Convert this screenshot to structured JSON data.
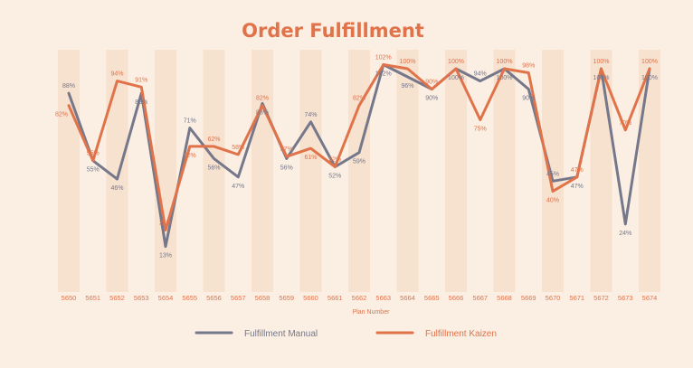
{
  "chart_data": {
    "type": "line",
    "title": "Order Fulfillment",
    "xlabel": "Plan Number",
    "ylabel": "",
    "ylim": [
      0,
      110
    ],
    "grid": false,
    "legend_position": "bottom",
    "categories": [
      "5650",
      "5651",
      "5652",
      "5653",
      "5654",
      "5655",
      "5656",
      "5657",
      "5658",
      "5659",
      "5660",
      "5661",
      "5662",
      "5663",
      "5664",
      "5665",
      "5666",
      "5667",
      "5668",
      "5669",
      "5670",
      "5671",
      "5672",
      "5673",
      "5674"
    ],
    "series": [
      {
        "name": "Fulfillment Manual",
        "color": "#75788a",
        "values": [
          88,
          55,
          46,
          88,
          13,
          71,
          56,
          47,
          83,
          56,
          74,
          52,
          59,
          102,
          96,
          90,
          100,
          94,
          100,
          90,
          45,
          47,
          100,
          24,
          100
        ],
        "labels": [
          "88%",
          "55%",
          "46%",
          "88%",
          "13%",
          "71%",
          "56%",
          "47%",
          "83%",
          "56%",
          "74%",
          "52%",
          "59%",
          "102%",
          "96%",
          "90%",
          "100%",
          "94%",
          "100%",
          "90%",
          "45%",
          "47%",
          "100%",
          "24%",
          "100%"
        ]
      },
      {
        "name": "Fulfillment Kaizen",
        "color": "#e1734a",
        "values": [
          82,
          55,
          94,
          91,
          21,
          62,
          62,
          58,
          82,
          57,
          61,
          52,
          82,
          102,
          100,
          90,
          100,
          75,
          100,
          98,
          40,
          47,
          100,
          70,
          100
        ],
        "labels": [
          "82%",
          "55%",
          "94%",
          "91%",
          "21%",
          "62%",
          "62%",
          "58%",
          "82%",
          "57%",
          "61%",
          "52%",
          "82%",
          "102%",
          "100%",
          "90%",
          "100%",
          "75%",
          "100%",
          "98%",
          "40%",
          "47%",
          "100%",
          "70%",
          "100%"
        ]
      }
    ],
    "legend": [
      "Fulfillment Manual",
      "Fulfillment Kaizen"
    ]
  },
  "colors": {
    "background": "#fbeee2",
    "band": "#f5dcc8",
    "title": "#e1734a",
    "manual": "#75788a",
    "kaizen": "#e1734a"
  }
}
